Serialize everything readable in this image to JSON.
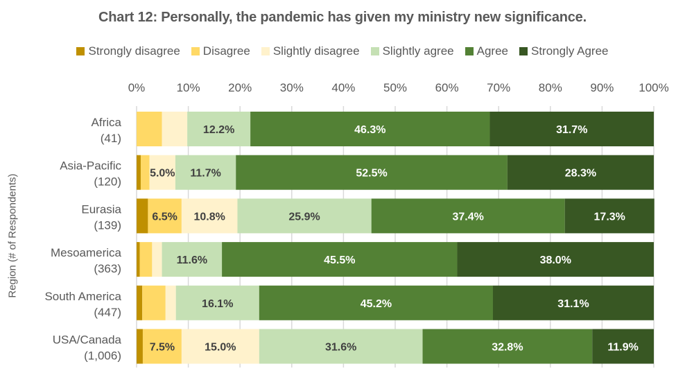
{
  "chart_data": {
    "type": "bar",
    "orientation": "horizontal",
    "stacked": "percent",
    "title": "Chart 12: Personally, the pandemic has given my ministry new significance.",
    "xlabel": "",
    "ylabel": "Region (# of Respondents)",
    "xlim": [
      0,
      100
    ],
    "x_ticks": [
      "0%",
      "10%",
      "20%",
      "30%",
      "40%",
      "50%",
      "60%",
      "70%",
      "80%",
      "90%",
      "100%"
    ],
    "x_axis_position": "top",
    "grid": true,
    "legend_position": "top",
    "categories": [
      {
        "name": "Africa",
        "count": "(41)"
      },
      {
        "name": "Asia-Pacific",
        "count": "(120)"
      },
      {
        "name": "Eurasia",
        "count": "(139)"
      },
      {
        "name": "Mesoamerica",
        "count": "(363)"
      },
      {
        "name": "South America",
        "count": "(447)"
      },
      {
        "name": "USA/Canada",
        "count": "(1,006)"
      }
    ],
    "series": [
      {
        "name": "Strongly disagree",
        "color": "#BF9000",
        "label_color": "#404040",
        "values": [
          0.0,
          0.8,
          2.2,
          0.6,
          1.1,
          1.2
        ],
        "labels": [
          "",
          "",
          "",
          "",
          "",
          ""
        ]
      },
      {
        "name": "Disagree",
        "color": "#FFD966",
        "label_color": "#404040",
        "values": [
          4.9,
          1.7,
          6.5,
          2.4,
          4.5,
          7.5
        ],
        "labels": [
          "",
          "",
          "6.5%",
          "",
          "",
          "7.5%"
        ]
      },
      {
        "name": "Slightly disagree",
        "color": "#FFF2CC",
        "label_color": "#404040",
        "values": [
          4.9,
          5.0,
          10.8,
          1.9,
          2.0,
          15.0
        ],
        "labels": [
          "",
          "5.0%",
          "10.8%",
          "",
          "",
          "15.0%"
        ]
      },
      {
        "name": "Slightly agree",
        "color": "#C5E0B4",
        "label_color": "#404040",
        "values": [
          12.2,
          11.7,
          25.9,
          11.6,
          16.1,
          31.6
        ],
        "labels": [
          "12.2%",
          "11.7%",
          "25.9%",
          "11.6%",
          "16.1%",
          "31.6%"
        ]
      },
      {
        "name": "Agree",
        "color": "#538135",
        "label_color": "#FFFFFF",
        "values": [
          46.3,
          52.5,
          37.4,
          45.5,
          45.2,
          32.8
        ],
        "labels": [
          "46.3%",
          "52.5%",
          "37.4%",
          "45.5%",
          "45.2%",
          "32.8%"
        ]
      },
      {
        "name": "Strongly Agree",
        "color": "#385723",
        "label_color": "#FFFFFF",
        "values": [
          31.7,
          28.3,
          17.3,
          38.0,
          31.1,
          11.9
        ],
        "labels": [
          "31.7%",
          "28.3%",
          "17.3%",
          "38.0%",
          "31.1%",
          "11.9%"
        ]
      }
    ]
  }
}
